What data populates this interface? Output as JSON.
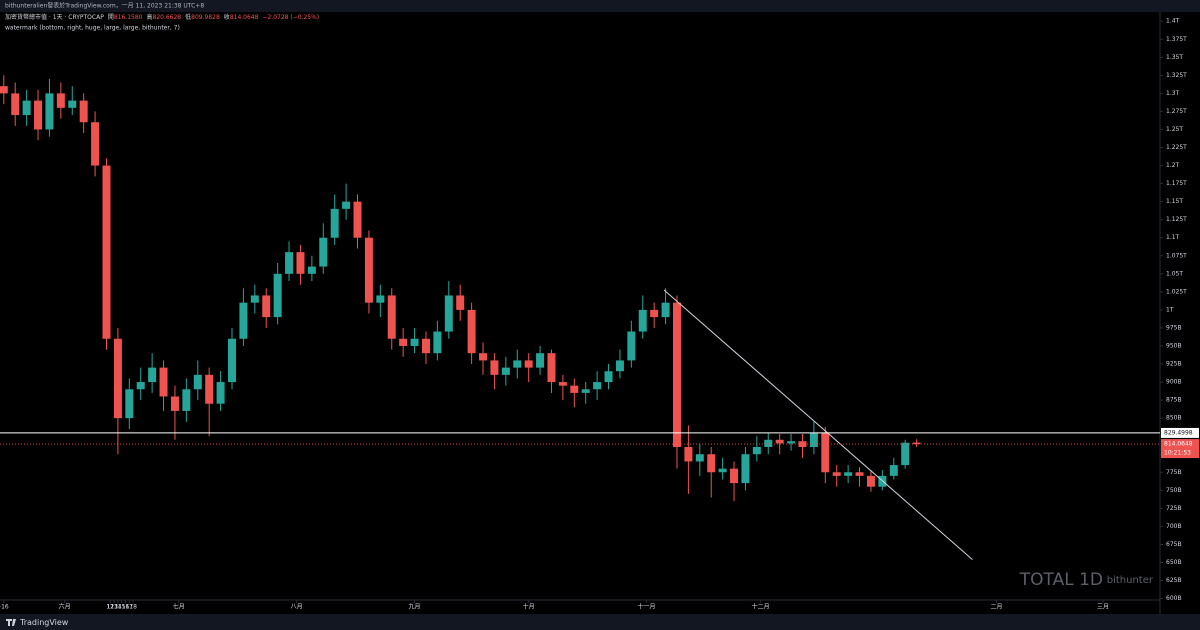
{
  "header": {
    "published": "bithunteralien發表於TradingView.com，一月 11, 2023 21:38 UTC+8",
    "symbol": "加密貨幣總市值 · 1天 · CRYPTOCAP",
    "ohlc": [
      {
        "key": "開",
        "value": "816.1580"
      },
      {
        "key": "高",
        "value": "820.6628"
      },
      {
        "key": "低",
        "value": "809.9828"
      },
      {
        "key": "收",
        "value": "814.0648"
      }
    ],
    "change": "−2.0728 (−0.25%)",
    "indicator": "watermark (bottom, right, huge, large, large, bithunter, 7)"
  },
  "chart_data": {
    "type": "candlestick",
    "x": [
      -16,
      -13,
      -10,
      -7,
      -4,
      -1,
      2,
      5,
      8,
      11,
      14,
      17,
      20,
      23,
      26,
      29,
      32,
      35,
      38,
      41,
      44,
      47,
      50,
      53,
      56,
      59,
      62,
      65,
      68,
      71,
      74,
      77,
      80,
      83,
      86,
      89,
      92,
      95,
      98,
      101,
      104,
      107,
      110,
      113,
      116,
      119,
      122,
      125,
      128,
      131,
      134,
      137,
      140,
      143,
      146,
      149,
      152,
      155,
      158,
      161,
      164,
      167,
      170,
      173,
      176,
      179,
      182,
      185,
      188,
      191,
      194,
      197,
      200,
      203,
      206,
      209,
      212,
      215,
      218,
      221,
      224
    ],
    "open": [
      1310,
      1300,
      1270,
      1290,
      1250,
      1300,
      1280,
      1290,
      1260,
      1200,
      960,
      850,
      890,
      900,
      920,
      880,
      860,
      890,
      910,
      870,
      900,
      960,
      1010,
      1020,
      990,
      1050,
      1080,
      1050,
      1060,
      1100,
      1140,
      1150,
      1100,
      1010,
      1020,
      960,
      950,
      960,
      940,
      970,
      1020,
      1000,
      940,
      930,
      910,
      920,
      930,
      920,
      940,
      900,
      895,
      885,
      890,
      900,
      915,
      930,
      970,
      1000,
      990,
      1010,
      810,
      790,
      800,
      775,
      780,
      760,
      800,
      810,
      820,
      815,
      818,
      810,
      830,
      775,
      770,
      775,
      770,
      755,
      770,
      785,
      816.158
    ],
    "high": [
      1325,
      1315,
      1305,
      1305,
      1320,
      1315,
      1310,
      1300,
      1275,
      1210,
      975,
      905,
      920,
      940,
      930,
      895,
      905,
      930,
      920,
      915,
      975,
      1030,
      1035,
      1030,
      1065,
      1095,
      1090,
      1075,
      1120,
      1160,
      1175,
      1160,
      1110,
      1035,
      1030,
      975,
      975,
      970,
      985,
      1040,
      1035,
      1010,
      955,
      940,
      935,
      945,
      940,
      950,
      945,
      910,
      905,
      900,
      915,
      925,
      945,
      985,
      1020,
      1010,
      1030,
      1020,
      840,
      815,
      810,
      795,
      790,
      810,
      825,
      830,
      828,
      828,
      828,
      845,
      838,
      785,
      785,
      782,
      778,
      778,
      795,
      820,
      820.6628
    ],
    "low": [
      1285,
      1255,
      1255,
      1235,
      1240,
      1265,
      1270,
      1245,
      1185,
      945,
      800,
      835,
      875,
      885,
      860,
      820,
      845,
      875,
      825,
      860,
      890,
      950,
      995,
      975,
      980,
      1040,
      1035,
      1040,
      1050,
      1090,
      1125,
      1085,
      995,
      990,
      945,
      935,
      940,
      925,
      930,
      960,
      985,
      925,
      910,
      890,
      895,
      905,
      900,
      910,
      885,
      875,
      865,
      870,
      875,
      890,
      905,
      920,
      960,
      975,
      980,
      780,
      745,
      770,
      740,
      765,
      735,
      750,
      790,
      800,
      800,
      805,
      795,
      800,
      760,
      755,
      760,
      755,
      748,
      750,
      765,
      780,
      809.9828
    ],
    "close": [
      1300,
      1270,
      1290,
      1250,
      1300,
      1280,
      1290,
      1260,
      1200,
      960,
      850,
      890,
      900,
      920,
      880,
      860,
      890,
      910,
      870,
      900,
      960,
      1010,
      1020,
      990,
      1050,
      1080,
      1050,
      1060,
      1100,
      1140,
      1150,
      1100,
      1010,
      1020,
      960,
      950,
      960,
      940,
      970,
      1020,
      1000,
      940,
      930,
      910,
      920,
      930,
      920,
      940,
      900,
      895,
      885,
      890,
      900,
      915,
      930,
      970,
      1000,
      990,
      1010,
      810,
      790,
      800,
      775,
      780,
      760,
      800,
      810,
      820,
      815,
      818,
      810,
      830,
      775,
      770,
      775,
      770,
      755,
      770,
      785,
      816,
      814.0648
    ],
    "up_color": "#26a69a",
    "down_color": "#ef5350",
    "xlim": [
      -17,
      288
    ],
    "xticks": [
      -16,
      {
        "value": 0,
        "label": "六月"
      },
      12,
      {
        "value": 30,
        "label": "七月"
      },
      18,
      {
        "value": 61,
        "label": "八月"
      },
      15,
      {
        "value": 92,
        "label": "九月"
      },
      12,
      {
        "value": 122,
        "label": "十月"
      },
      17,
      {
        "value": 153,
        "label": "十一月"
      },
      14,
      {
        "value": 183,
        "label": "十二月"
      },
      12,
      2023,
      16,
      {
        "value": 245,
        "label": "二月"
      },
      13,
      {
        "value": 273,
        "label": "三月"
      },
      13
    ],
    "ylim": [
      598,
      1410
    ],
    "yticks": [
      {
        "value": 600,
        "label": "600B"
      },
      {
        "value": 625,
        "label": "625B"
      },
      {
        "value": 650,
        "label": "650B"
      },
      {
        "value": 675,
        "label": "675B"
      },
      {
        "value": 700,
        "label": "700B"
      },
      {
        "value": 725,
        "label": "725B"
      },
      {
        "value": 750,
        "label": "750B"
      },
      {
        "value": 775,
        "label": "775B"
      },
      {
        "value": 800,
        "label": "800B"
      },
      {
        "value": 825,
        "label": "825B"
      },
      {
        "value": 850,
        "label": "850B"
      },
      {
        "value": 875,
        "label": "875B"
      },
      {
        "value": 900,
        "label": "900B"
      },
      {
        "value": 925,
        "label": "925B"
      },
      {
        "value": 950,
        "label": "950B"
      },
      {
        "value": 975,
        "label": "975B"
      },
      {
        "value": 1000,
        "label": "1T"
      },
      {
        "value": 1025,
        "label": "1.025T"
      },
      {
        "value": 1050,
        "label": "1.05T"
      },
      {
        "value": 1075,
        "label": "1.075T"
      },
      {
        "value": 1100,
        "label": "1.1T"
      },
      {
        "value": 1125,
        "label": "1.125T"
      },
      {
        "value": 1150,
        "label": "1.15T"
      },
      {
        "value": 1175,
        "label": "1.175T"
      },
      {
        "value": 1200,
        "label": "1.2T"
      },
      {
        "value": 1225,
        "label": "1.225T"
      },
      {
        "value": 1250,
        "label": "1.25T"
      },
      {
        "value": 1275,
        "label": "1.275T"
      },
      {
        "value": 1300,
        "label": "1.3T"
      },
      {
        "value": 1325,
        "label": "1.325T"
      },
      {
        "value": 1350,
        "label": "1.35T"
      },
      {
        "value": 1375,
        "label": "1.375T"
      },
      {
        "value": 1400,
        "label": "1.4T"
      }
    ],
    "hline": {
      "value": 829.4998,
      "color": "#ffffff"
    },
    "last_price": {
      "value": 814.0648,
      "countdown": "10:21:53",
      "color": "#ef5350"
    },
    "trendline": {
      "x": [
        157.6,
        238.7
      ],
      "y": [
        1027.6,
        654
      ],
      "color": "#d1d4dc"
    },
    "watermark": {
      "title": "TOTAL 1D",
      "author": "bithunter"
    },
    "brand": "TradingView"
  }
}
